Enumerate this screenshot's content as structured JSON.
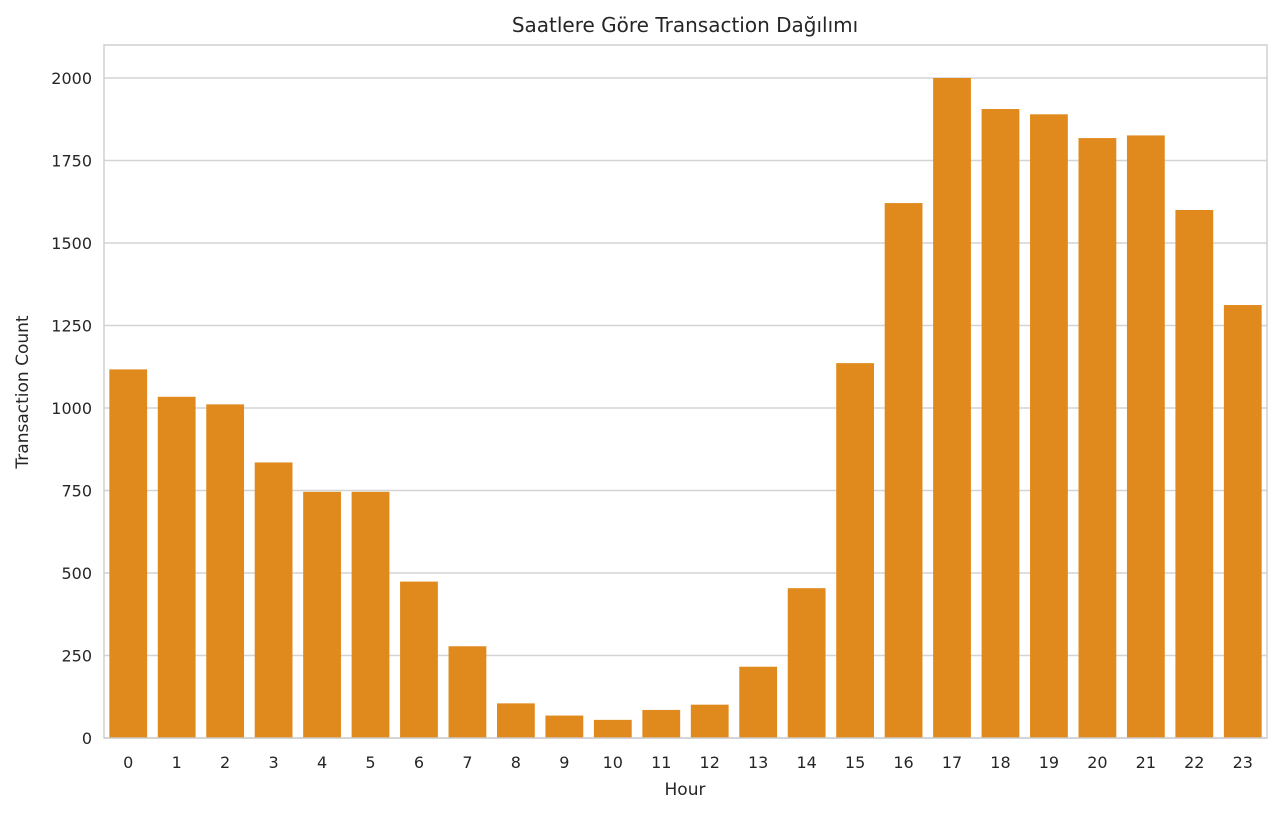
{
  "chart_data": {
    "type": "bar",
    "title": "Saatlere Göre Transaction Dağılımı",
    "xlabel": "Hour",
    "ylabel": "Transaction Count",
    "categories": [
      "0",
      "1",
      "2",
      "3",
      "4",
      "5",
      "6",
      "7",
      "8",
      "9",
      "10",
      "11",
      "12",
      "13",
      "14",
      "15",
      "16",
      "17",
      "18",
      "19",
      "20",
      "21",
      "22",
      "23"
    ],
    "values": [
      1117,
      1034,
      1011,
      835,
      746,
      746,
      474,
      278,
      105,
      68,
      55,
      85,
      101,
      216,
      454,
      1136,
      1621,
      2000,
      1906,
      1890,
      1818,
      1826,
      1600,
      1312
    ],
    "ylim": [
      0,
      2100
    ],
    "yticks": [
      0,
      250,
      500,
      750,
      1000,
      1250,
      1500,
      1750,
      2000
    ],
    "grid": "horizontal",
    "bar_color": "#E08A1E"
  }
}
